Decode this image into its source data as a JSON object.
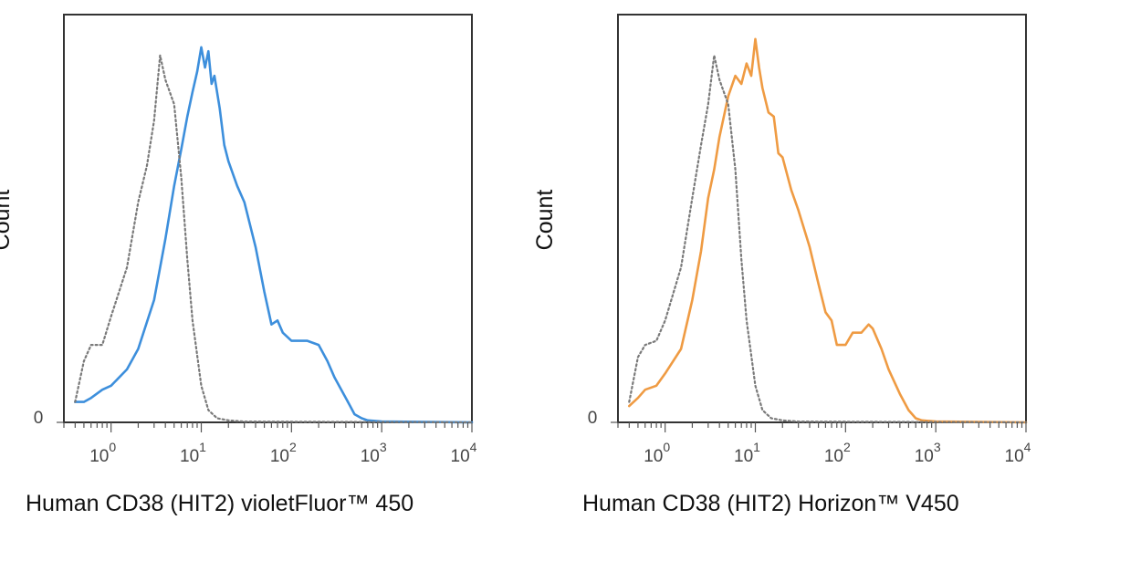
{
  "chart_data": [
    {
      "type": "line",
      "title": "",
      "xlabel": "Human CD38 (HIT2) violetFluor™ 450",
      "ylabel": "Count",
      "x_scale": "log",
      "xlim": [
        0.3,
        10000
      ],
      "ylim": [
        0,
        100
      ],
      "x_ticks": [
        {
          "base": "10",
          "exp": "0"
        },
        {
          "base": "10",
          "exp": "1"
        },
        {
          "base": "10",
          "exp": "2"
        },
        {
          "base": "10",
          "exp": "3"
        },
        {
          "base": "10",
          "exp": "4"
        }
      ],
      "y_ticks": [
        "0"
      ],
      "grid": false,
      "legend": "none",
      "series": [
        {
          "color": "#3d8fdc",
          "style": "solid",
          "x": [
            0.4,
            0.5,
            0.6,
            0.8,
            1.0,
            1.5,
            2.0,
            3.0,
            4.0,
            5.0,
            6.0,
            7.0,
            8.0,
            9.0,
            10.0,
            11.0,
            12.0,
            13.0,
            14.0,
            16.0,
            18.0,
            20.0,
            25.0,
            30.0,
            40.0,
            50.0,
            60.0,
            70.0,
            80.0,
            100.0,
            120.0,
            150.0,
            200.0,
            250.0,
            300.0,
            400.0,
            500.0,
            600.0,
            700.0,
            1000.0,
            10000.0
          ],
          "y": [
            5,
            5,
            6,
            8,
            9,
            13,
            18,
            30,
            45,
            58,
            67,
            75,
            81,
            86,
            92,
            87,
            91,
            83,
            85,
            77,
            68,
            64,
            58,
            54,
            43,
            32,
            24,
            25,
            22,
            20,
            20,
            20,
            19,
            15,
            11,
            6,
            2,
            1,
            0.5,
            0.2,
            0
          ]
        },
        {
          "color": "#7a7a7a",
          "style": "dotted",
          "x": [
            0.4,
            0.5,
            0.6,
            0.8,
            1.0,
            1.5,
            2.0,
            2.5,
            3.0,
            3.5,
            4.0,
            5.0,
            6.0,
            7.0,
            8.0,
            10.0,
            12.0,
            15.0,
            20.0,
            30.0,
            10000.0
          ],
          "y": [
            5,
            15,
            19,
            19,
            26,
            38,
            54,
            63,
            74,
            90,
            84,
            78,
            60,
            40,
            25,
            9,
            3,
            1,
            0.5,
            0.2,
            0
          ]
        }
      ]
    },
    {
      "type": "line",
      "title": "",
      "xlabel": "Human CD38 (HIT2) Horizon™  V450",
      "ylabel": "Count",
      "x_scale": "log",
      "xlim": [
        0.3,
        10000
      ],
      "ylim": [
        0,
        100
      ],
      "x_ticks": [
        {
          "base": "10",
          "exp": "0"
        },
        {
          "base": "10",
          "exp": "1"
        },
        {
          "base": "10",
          "exp": "2"
        },
        {
          "base": "10",
          "exp": "3"
        },
        {
          "base": "10",
          "exp": "4"
        }
      ],
      "y_ticks": [
        "0"
      ],
      "grid": false,
      "legend": "none",
      "series": [
        {
          "color": "#ef9b43",
          "style": "solid",
          "x": [
            0.4,
            0.5,
            0.6,
            0.8,
            1.0,
            1.5,
            2.0,
            2.5,
            3.0,
            3.5,
            4.0,
            5.0,
            6.0,
            7.0,
            8.0,
            9.0,
            10.0,
            11.0,
            12.0,
            14.0,
            16.0,
            18.0,
            20.0,
            25.0,
            30.0,
            40.0,
            50.0,
            60.0,
            70.0,
            80.0,
            100.0,
            120.0,
            150.0,
            180.0,
            200.0,
            250.0,
            300.0,
            400.0,
            500.0,
            600.0,
            700.0,
            1000.0,
            10000.0
          ],
          "y": [
            4,
            6,
            8,
            9,
            12,
            18,
            30,
            42,
            55,
            62,
            70,
            80,
            85,
            83,
            88,
            85,
            94,
            87,
            82,
            76,
            75,
            66,
            65,
            57,
            52,
            43,
            34,
            27,
            25,
            19,
            19,
            22,
            22,
            24,
            23,
            18,
            13,
            7,
            3,
            1,
            0.5,
            0.2,
            0
          ]
        },
        {
          "color": "#7a7a7a",
          "style": "dotted",
          "x": [
            0.4,
            0.5,
            0.6,
            0.8,
            1.0,
            1.5,
            2.0,
            2.5,
            3.0,
            3.5,
            4.0,
            5.0,
            6.0,
            7.0,
            8.0,
            10.0,
            12.0,
            15.0,
            20.0,
            30.0,
            10000.0
          ],
          "y": [
            5,
            16,
            19,
            20,
            25,
            38,
            55,
            68,
            78,
            90,
            84,
            78,
            62,
            40,
            25,
            9,
            3,
            1,
            0.5,
            0.2,
            0
          ]
        }
      ]
    }
  ]
}
